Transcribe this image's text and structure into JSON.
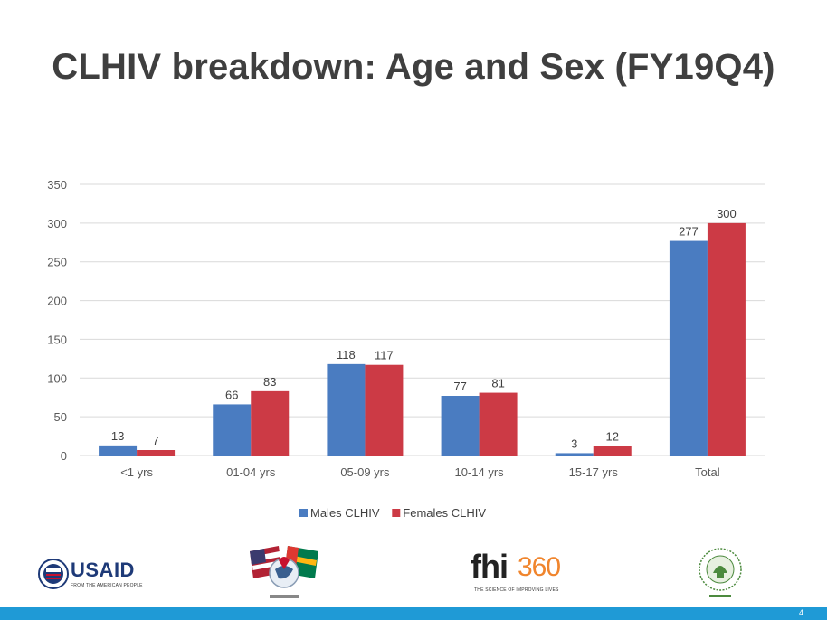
{
  "slide": {
    "title": "CLHIV breakdown: Age and Sex (FY19Q4)",
    "page_number": "4"
  },
  "logos": {
    "usaid": "USAID",
    "usaid_tagline": "FROM THE AMERICAN PEOPLE",
    "fhi_main": "fhi",
    "fhi_number": "360",
    "fhi_tagline": "THE SCIENCE OF IMPROVING LIVES"
  },
  "colors": {
    "male": "#4a7cc1",
    "female": "#cc3a45",
    "grid": "#d9d9d9",
    "title": "#3f3f3f",
    "footer_bar": "#1f9ad6"
  },
  "chart_data": {
    "type": "bar",
    "title": "",
    "xlabel": "",
    "ylabel": "",
    "categories": [
      "<1 yrs",
      "01-04 yrs",
      "05-09 yrs",
      "10-14 yrs",
      "15-17 yrs",
      "Total"
    ],
    "series": [
      {
        "name": "Males CLHIV",
        "values": [
          13,
          66,
          118,
          77,
          3,
          277
        ]
      },
      {
        "name": "Females CLHIV",
        "values": [
          7,
          83,
          117,
          81,
          12,
          300
        ]
      }
    ],
    "ylim": [
      0,
      350
    ],
    "yticks": [
      0,
      50,
      100,
      150,
      200,
      250,
      300,
      350
    ],
    "grid": true,
    "data_labels": true,
    "legend_position": "bottom"
  }
}
